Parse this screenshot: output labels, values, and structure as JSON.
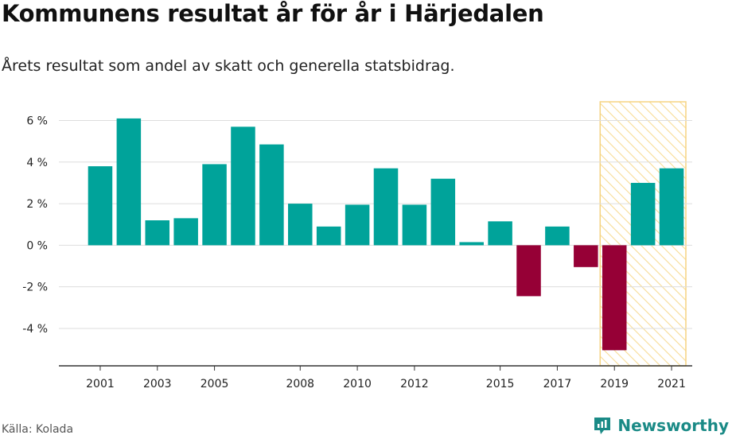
{
  "header": {
    "title": "Kommunens resultat år för år i Härjedalen",
    "subtitle": "Årets resultat som andel av skatt och generella statsbidrag."
  },
  "footer": {
    "source": "Källa: Kolada",
    "brand": "Newsworthy"
  },
  "colors": {
    "positive": "#00a39a",
    "negative": "#960036",
    "highlight_stroke": "#f5d380",
    "highlight_hatch": "#f7dc96",
    "grid": "#dddddd",
    "brand": "#1a8a86"
  },
  "chart_data": {
    "type": "bar",
    "title": "Kommunens resultat år för år i Härjedalen",
    "subtitle": "Årets resultat som andel av skatt och generella statsbidrag.",
    "categories": [
      "2001",
      "2002",
      "2003",
      "2004",
      "2005",
      "2006",
      "2007",
      "2008",
      "2009",
      "2010",
      "2011",
      "2012",
      "2013",
      "2014",
      "2015",
      "2016",
      "2017",
      "2018",
      "2019",
      "2020",
      "2021"
    ],
    "values": [
      3.8,
      6.1,
      1.2,
      1.3,
      3.9,
      5.7,
      4.85,
      2.0,
      0.9,
      1.95,
      3.7,
      1.95,
      3.2,
      0.15,
      1.15,
      -2.45,
      0.9,
      -1.05,
      -5.05,
      3.0,
      3.7
    ],
    "ylim": [
      -5.8,
      6.9
    ],
    "yticks": [
      -4,
      -2,
      0,
      2,
      4,
      6
    ],
    "ytick_labels": [
      "-4 %",
      "-2 %",
      "0 %",
      "2 %",
      "4 %",
      "6 %"
    ],
    "xtick_labels": [
      "2001",
      "2003",
      "2005",
      "2008",
      "2010",
      "2012",
      "2015",
      "2017",
      "2019",
      "2021"
    ],
    "highlight_range": [
      "2019",
      "2021"
    ],
    "xlabel": "",
    "ylabel": "",
    "grid": true
  }
}
